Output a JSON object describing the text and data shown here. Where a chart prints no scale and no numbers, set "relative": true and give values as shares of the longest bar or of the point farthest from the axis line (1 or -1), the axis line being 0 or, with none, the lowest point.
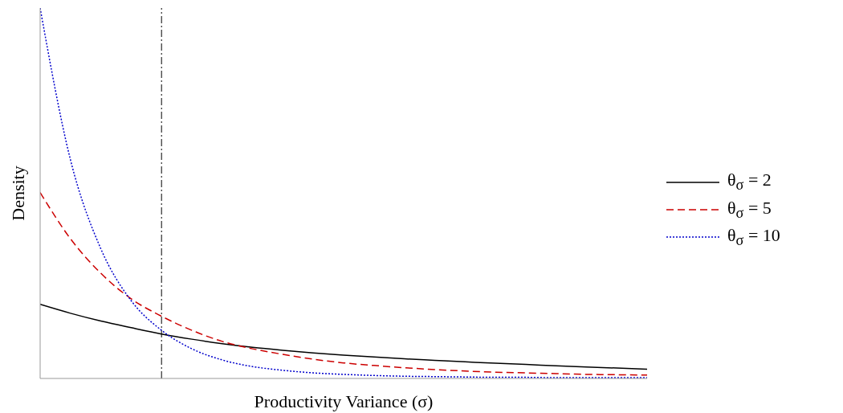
{
  "chart_data": {
    "type": "line",
    "relative": true,
    "xlabel": "Productivity Variance (σ)",
    "ylabel": "Density",
    "legend": "right",
    "marker": "none",
    "grid": false,
    "categories": [
      null,
      null,
      null,
      null,
      null,
      null,
      null,
      null,
      null,
      null,
      null,
      null,
      null,
      null,
      null,
      null,
      null,
      null,
      null,
      null,
      null
    ],
    "series": [
      {
        "name": "θ$_{σ}$ = 2",
        "color": "#000000",
        "line_style": "solid",
        "values": [
          0.2,
          0.176,
          0.155,
          0.137,
          0.12,
          0.106,
          0.094,
          0.084,
          0.076,
          0.069,
          0.063,
          0.058,
          0.053,
          0.049,
          0.045,
          0.041,
          0.038,
          0.034,
          0.031,
          0.028,
          0.025
        ]
      },
      {
        "name": "θ$_{σ}$ = 5",
        "color": "#cc0000",
        "line_style": "dashed",
        "values": [
          0.502,
          0.377,
          0.284,
          0.215,
          0.168,
          0.13,
          0.1,
          0.08,
          0.065,
          0.052,
          0.042,
          0.035,
          0.029,
          0.024,
          0.02,
          0.017,
          0.015,
          0.013,
          0.011,
          0.01,
          0.009
        ]
      },
      {
        "name": "θ$_{σ}$ = 10",
        "color": "#0000cc",
        "line_style": "dotted",
        "values": [
          1.0,
          0.59,
          0.35,
          0.21,
          0.13,
          0.08,
          0.05,
          0.032,
          0.022,
          0.015,
          0.011,
          0.008,
          0.006,
          0.005,
          0.004,
          0.003,
          0.003,
          0.002,
          0.002,
          0.002,
          0.002
        ]
      }
    ]
  }
}
